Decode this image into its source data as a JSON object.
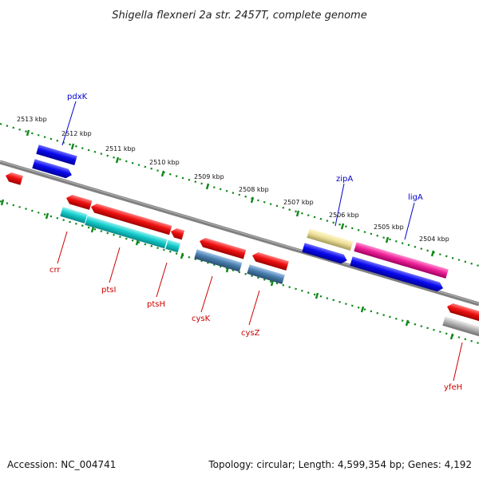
{
  "title": "Shigella flexneri 2a str. 2457T, complete genome",
  "accession": "Accession: NC_004741",
  "topology": "Topology: circular; Length: 4,599,354 bp; Genes: 4,192",
  "kbp_labels": [
    "2513 kbp",
    "2512 kbp",
    "2511 kbp",
    "2510 kbp",
    "2509 kbp",
    "2508 kbp",
    "2507 kbp",
    "2506 kbp",
    "2505 kbp",
    "2504 kbp"
  ],
  "gene_labels_top": [
    "pdxK",
    "zipA",
    "ligA"
  ],
  "gene_labels_bottom": [
    "crr",
    "ptsI",
    "ptsH",
    "cysK",
    "cysZ",
    "yfeH"
  ],
  "colors": {
    "red": "#ee1111",
    "blue": "#0a0aee",
    "cyan": "#14cccc",
    "steel": "#4a7fb0",
    "pink": "#ee2299",
    "khaki": "#eee099",
    "gray": "#b4b4b4",
    "backbone": "#808080",
    "ticks": "#11881a"
  }
}
